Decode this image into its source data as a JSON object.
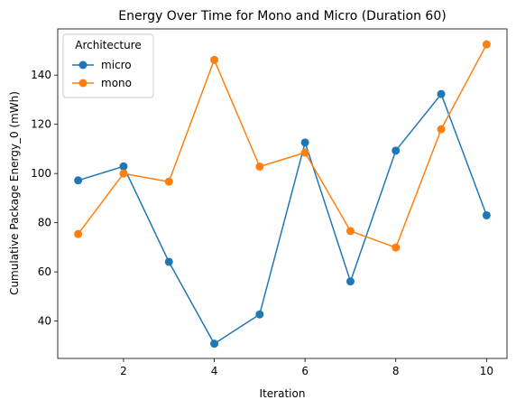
{
  "chart_data": {
    "type": "line",
    "title": "Energy Over Time for Mono and Micro (Duration 60)",
    "xlabel": "Iteration",
    "ylabel": "Cumulative Package Energy_0 (mWh)",
    "x": [
      1,
      2,
      3,
      4,
      5,
      6,
      7,
      8,
      9,
      10
    ],
    "xlim": [
      0.55,
      10.45
    ],
    "ylim": [
      24.8,
      158.8
    ],
    "xticks": [
      2,
      4,
      6,
      8,
      10
    ],
    "yticks": [
      40,
      60,
      80,
      100,
      120,
      140
    ],
    "grid": false,
    "legend": {
      "title": "Architecture",
      "position": "top-left"
    },
    "series": [
      {
        "name": "micro",
        "color": "#1f77b4",
        "values": [
          97.2,
          102.9,
          64.1,
          30.8,
          42.7,
          112.6,
          56.1,
          109.3,
          132.3,
          83.0
        ]
      },
      {
        "name": "mono",
        "color": "#ff7f0e",
        "values": [
          75.4,
          100.0,
          96.7,
          146.2,
          102.8,
          108.5,
          76.6,
          69.9,
          118.0,
          152.5
        ]
      }
    ]
  }
}
